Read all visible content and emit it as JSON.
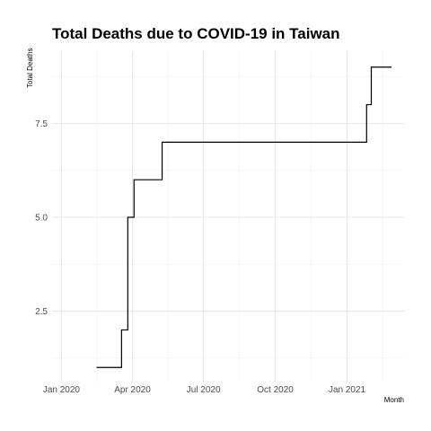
{
  "chart_data": {
    "type": "line",
    "title": "Total Deaths due to COVID-19 in Taiwan",
    "xlabel": "Month",
    "ylabel": "Total Deaths",
    "x_ticks": [
      "Jan 2020",
      "Apr 2020",
      "Jul 2020",
      "Oct 2020",
      "Jan 2021"
    ],
    "y_ticks": [
      "2.5",
      "5.0",
      "7.5"
    ],
    "xlim": [
      "2019-12-20",
      "2021-03-15"
    ],
    "ylim": [
      0.6,
      9.4
    ],
    "grid": true,
    "step": true,
    "series": [
      {
        "color": "#000000",
        "points": [
          {
            "x": "2020-02-15",
            "y": 1
          },
          {
            "x": "2020-03-18",
            "y": 2
          },
          {
            "x": "2020-03-26",
            "y": 5
          },
          {
            "x": "2020-04-03",
            "y": 6
          },
          {
            "x": "2020-05-09",
            "y": 7
          },
          {
            "x": "2021-01-26",
            "y": 8
          },
          {
            "x": "2021-02-01",
            "y": 9
          },
          {
            "x": "2021-02-27",
            "y": 9
          }
        ]
      }
    ]
  }
}
